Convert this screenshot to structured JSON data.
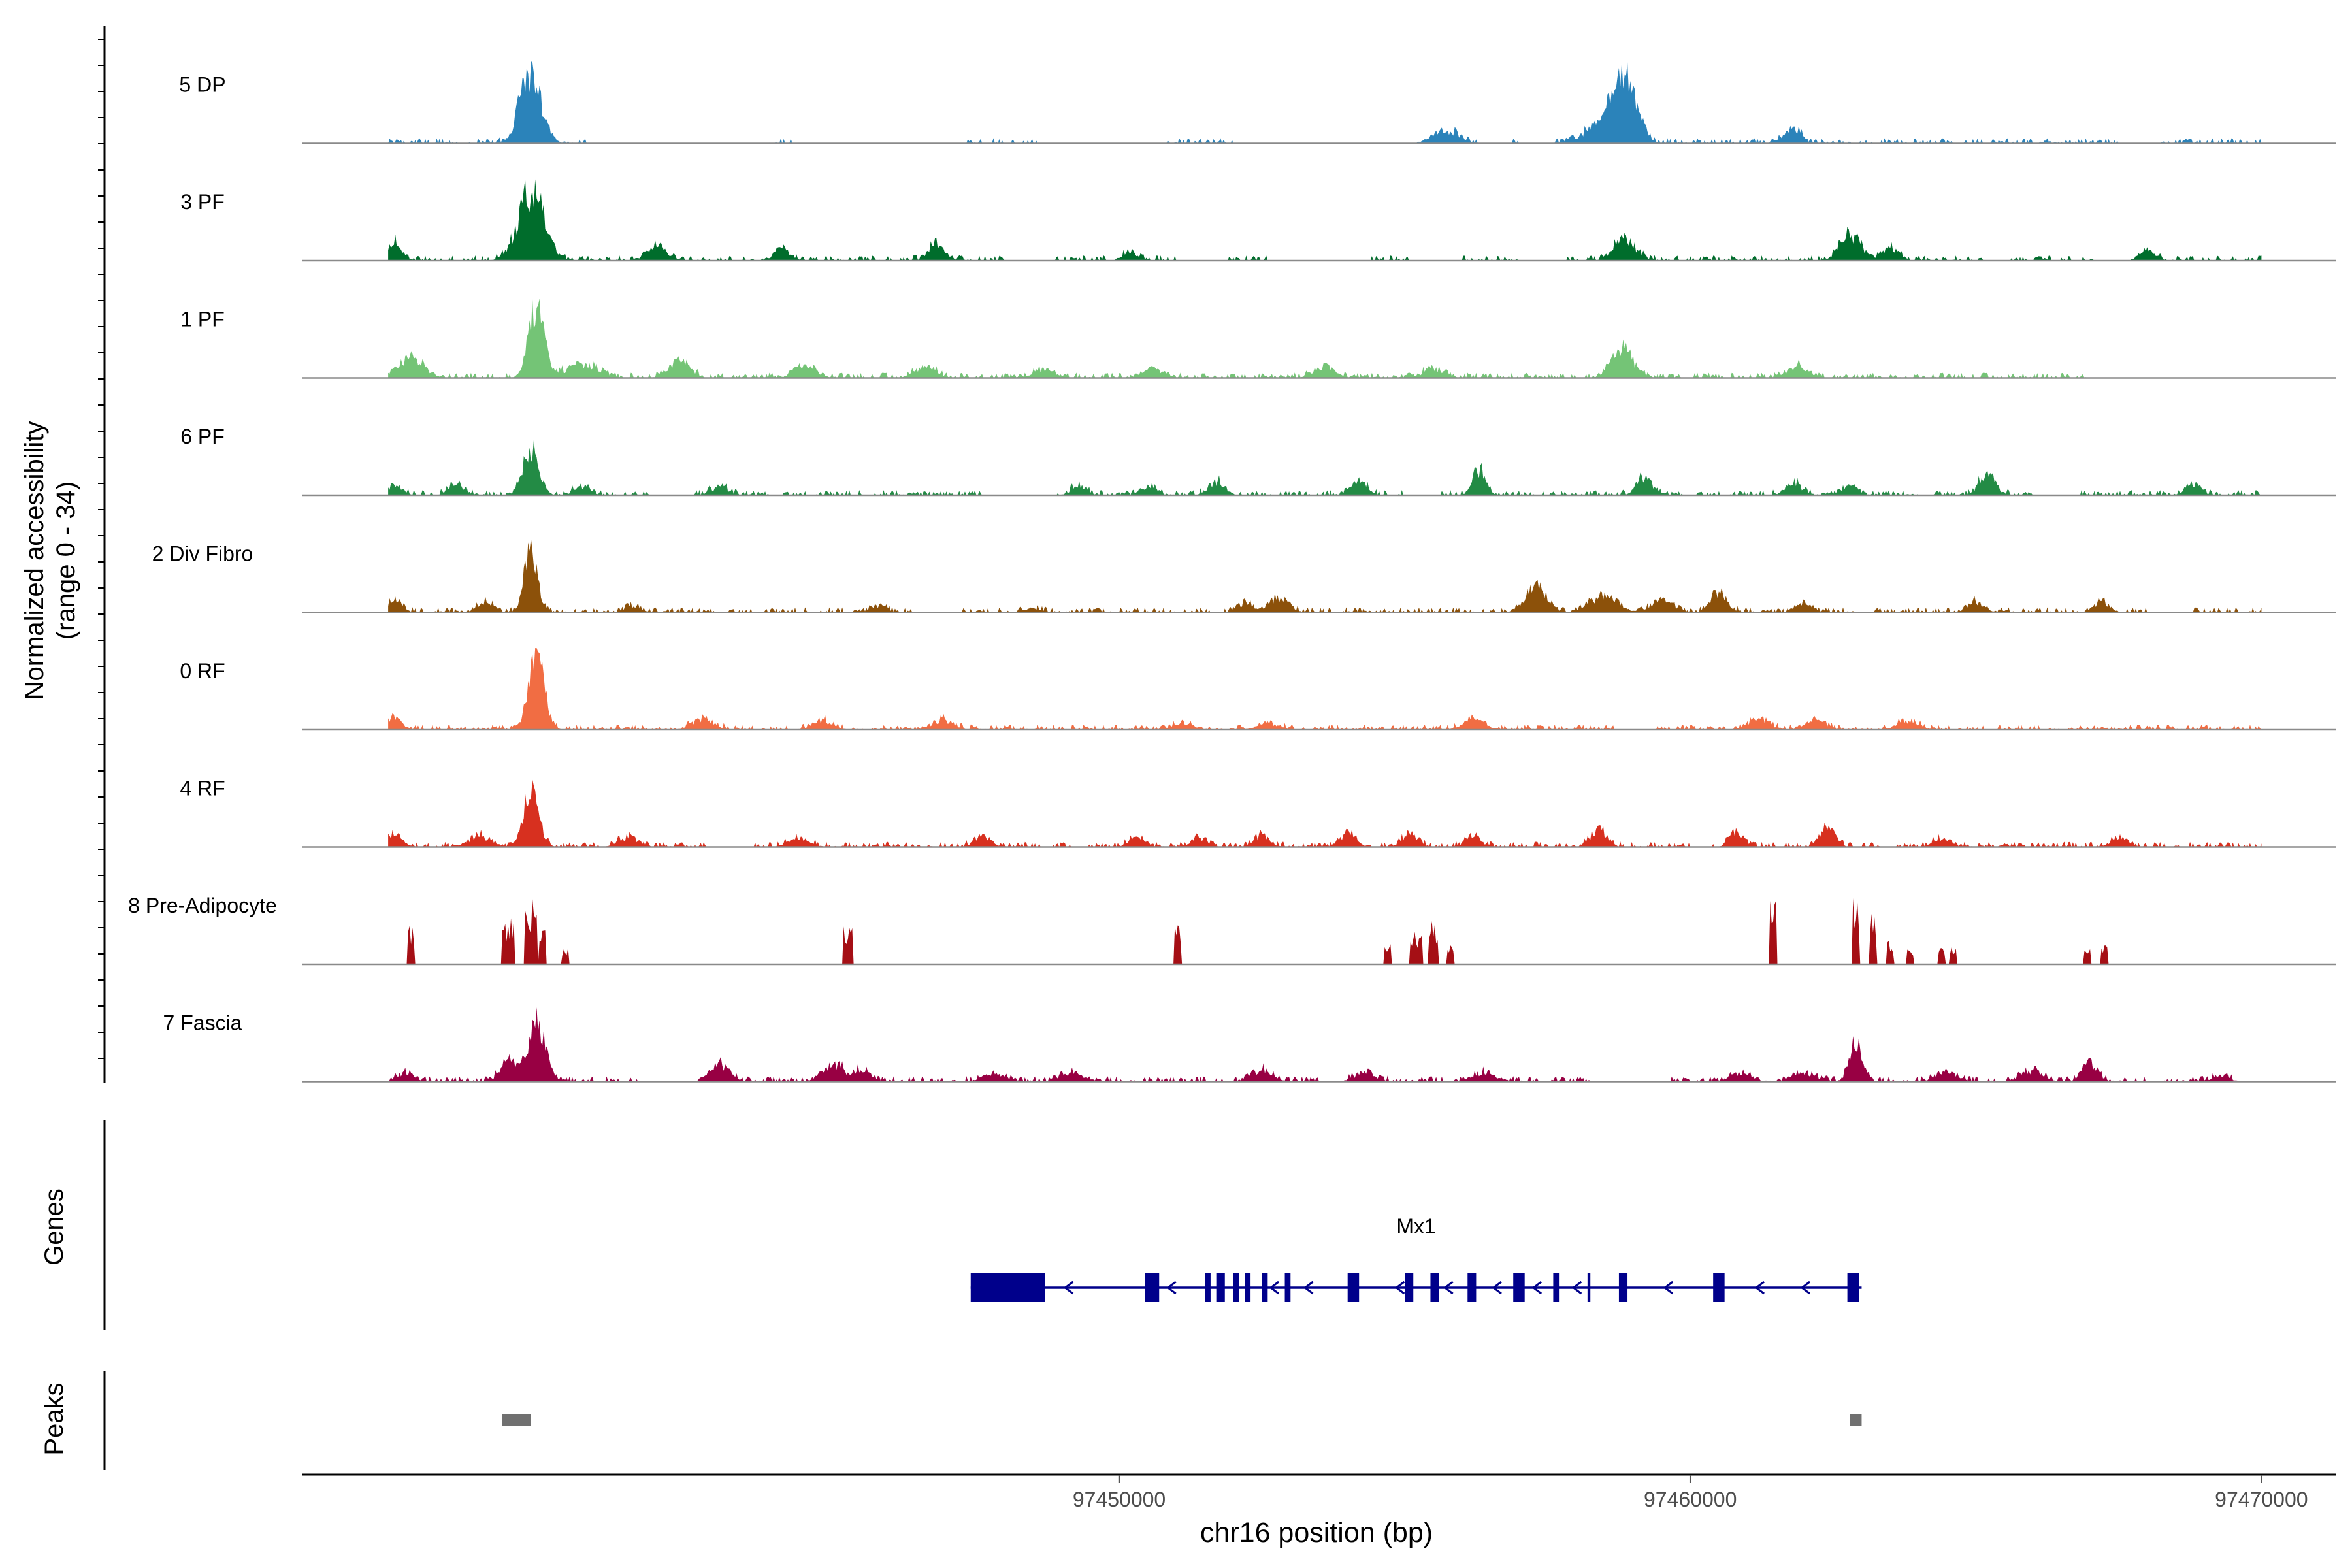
{
  "chart_data": {
    "type": "area",
    "title": "",
    "ylabel_line1": "Normalized accessibility",
    "ylabel_line2": "(range 0 - 34)",
    "ylim": [
      0,
      34
    ],
    "xlabel": "chr16 position (bp)",
    "xlim": [
      97435700,
      97471300
    ],
    "xticks": [
      97450000,
      97460000,
      97470000
    ],
    "xtick_labels": [
      "97450000",
      "97460000",
      "97470000"
    ],
    "signal_range": [
      97437200,
      97470000
    ],
    "tracks": [
      {
        "name": "5 DP",
        "color": "#2b83ba",
        "peaks": [
          [
            97439700,
            34,
            400
          ],
          [
            97458850,
            28,
            450
          ],
          [
            97458500,
            9,
            700
          ],
          [
            97455700,
            6,
            500
          ],
          [
            97461800,
            8,
            300
          ]
        ],
        "gaps": [
          [
            97440800,
            97443800
          ],
          [
            97444300,
            97447200
          ],
          [
            97448600,
            97450800
          ],
          [
            97452000,
            97455800
          ],
          [
            97456300,
            97456800
          ],
          [
            97457000,
            97457600
          ],
          [
            97467500,
            97468200
          ]
        ]
      },
      {
        "name": "3 PF",
        "color": "#006d2c",
        "peaks": [
          [
            97439700,
            32,
            500
          ],
          [
            97437300,
            8,
            300
          ],
          [
            97441900,
            6,
            400
          ],
          [
            97444100,
            6,
            300
          ],
          [
            97446800,
            8,
            300
          ],
          [
            97450200,
            4,
            300
          ],
          [
            97458850,
            10,
            400
          ],
          [
            97462800,
            12,
            400
          ],
          [
            97463500,
            6,
            300
          ],
          [
            97468000,
            5,
            300
          ]
        ],
        "gaps": [
          [
            97448000,
            97448800
          ],
          [
            97449800,
            97450000
          ],
          [
            97451000,
            97451900
          ],
          [
            97452600,
            97454400
          ],
          [
            97455200,
            97456000
          ],
          [
            97457000,
            97457800
          ],
          [
            97465200,
            97465600
          ],
          [
            97467200,
            97467900
          ]
        ]
      },
      {
        "name": "1 PF",
        "color": "#74c476",
        "peaks": [
          [
            97439800,
            34,
            300
          ],
          [
            97437600,
            9,
            500
          ],
          [
            97440600,
            6,
            600
          ],
          [
            97442300,
            7,
            400
          ],
          [
            97444500,
            6,
            400
          ],
          [
            97446600,
            5,
            400
          ],
          [
            97448700,
            4,
            400
          ],
          [
            97450600,
            4,
            400
          ],
          [
            97453600,
            5,
            400
          ],
          [
            97455500,
            4,
            400
          ],
          [
            97458800,
            14,
            400
          ],
          [
            97461900,
            5,
            400
          ]
        ],
        "gaps": [
          [
            97467000,
            97470000
          ]
        ]
      },
      {
        "name": "6 PF",
        "color": "#238b45",
        "peaks": [
          [
            97439700,
            22,
            300
          ],
          [
            97437300,
            4,
            300
          ],
          [
            97438400,
            5,
            300
          ],
          [
            97440600,
            4,
            300
          ],
          [
            97443000,
            4,
            300
          ],
          [
            97449300,
            4,
            300
          ],
          [
            97450500,
            4,
            300
          ],
          [
            97451700,
            6,
            300
          ],
          [
            97454200,
            6,
            300
          ],
          [
            97456300,
            12,
            250
          ],
          [
            97459200,
            8,
            300
          ],
          [
            97461800,
            6,
            300
          ],
          [
            97462800,
            4,
            300
          ],
          [
            97465200,
            10,
            300
          ],
          [
            97468800,
            5,
            300
          ]
        ],
        "gaps": [
          [
            97441800,
            97442500
          ],
          [
            97447600,
            97448900
          ],
          [
            97455000,
            97455600
          ],
          [
            97466000,
            97466800
          ]
        ]
      },
      {
        "name": "2 Div Fibro",
        "color": "#8c510a",
        "peaks": [
          [
            97439700,
            30,
            250
          ],
          [
            97437300,
            5,
            300
          ],
          [
            97438900,
            5,
            300
          ],
          [
            97441500,
            3,
            300
          ],
          [
            97445800,
            3,
            300
          ],
          [
            97448500,
            2,
            300
          ],
          [
            97452200,
            4,
            300
          ],
          [
            97452800,
            6,
            400
          ],
          [
            97457300,
            12,
            400
          ],
          [
            97458500,
            8,
            500
          ],
          [
            97459500,
            6,
            400
          ],
          [
            97460500,
            10,
            300
          ],
          [
            97462000,
            4,
            300
          ],
          [
            97465000,
            5,
            300
          ],
          [
            97467200,
            5,
            300
          ]
        ],
        "gaps": [
          [
            97446400,
            97447200
          ],
          [
            97468000,
            97468800
          ]
        ]
      },
      {
        "name": "0 RF",
        "color": "#f16d43",
        "peaks": [
          [
            97439800,
            34,
            300
          ],
          [
            97437300,
            5,
            300
          ],
          [
            97442700,
            5,
            400
          ],
          [
            97444800,
            4,
            400
          ],
          [
            97446900,
            4,
            400
          ],
          [
            97451100,
            3,
            400
          ],
          [
            97452600,
            3,
            400
          ],
          [
            97456200,
            5,
            400
          ],
          [
            97461200,
            5,
            400
          ],
          [
            97462200,
            4,
            400
          ],
          [
            97463800,
            4,
            400
          ]
        ],
        "gaps": [
          [
            97458700,
            97459400
          ]
        ]
      },
      {
        "name": "4 RF",
        "color": "#d7301f",
        "peaks": [
          [
            97439700,
            26,
            300
          ],
          [
            97437300,
            6,
            300
          ],
          [
            97438800,
            5,
            400
          ],
          [
            97441400,
            4,
            400
          ],
          [
            97444400,
            4,
            400
          ],
          [
            97447600,
            5,
            300
          ],
          [
            97450300,
            4,
            300
          ],
          [
            97451400,
            4,
            300
          ],
          [
            97452500,
            5,
            300
          ],
          [
            97454000,
            6,
            300
          ],
          [
            97456200,
            5,
            300
          ],
          [
            97458400,
            8,
            300
          ],
          [
            97460800,
            8,
            250
          ],
          [
            97462400,
            8,
            300
          ],
          [
            97464400,
            4,
            300
          ],
          [
            97467500,
            4,
            300
          ],
          [
            97455100,
            6,
            300
          ]
        ],
        "gaps": [
          [
            97442800,
            97443600
          ],
          [
            97460000,
            97460300
          ],
          [
            97462900,
            97463000
          ]
        ]
      },
      {
        "name": "8 Pre-Adipocyte",
        "color": "#a50f15",
        "peaks": [
          [
            97437600,
            16,
            60
          ],
          [
            97439300,
            20,
            120
          ],
          [
            97439700,
            28,
            100
          ],
          [
            97439900,
            16,
            60
          ],
          [
            97440300,
            8,
            50
          ],
          [
            97445250,
            18,
            80
          ],
          [
            97451020,
            17,
            60
          ],
          [
            97454700,
            9,
            70
          ],
          [
            97455200,
            14,
            120
          ],
          [
            97455500,
            18,
            80
          ],
          [
            97455800,
            8,
            60
          ],
          [
            97461450,
            28,
            70
          ],
          [
            97462900,
            28,
            70
          ],
          [
            97463200,
            24,
            60
          ],
          [
            97463500,
            10,
            60
          ],
          [
            97463850,
            8,
            60
          ],
          [
            97464400,
            8,
            50
          ],
          [
            97464600,
            8,
            50
          ],
          [
            97466950,
            8,
            50
          ],
          [
            97467250,
            8,
            50
          ]
        ],
        "gaps": []
      },
      {
        "name": "7 Fascia",
        "color": "#980043",
        "peaks": [
          [
            97439800,
            26,
            350
          ],
          [
            97439300,
            10,
            300
          ],
          [
            97437500,
            4,
            300
          ],
          [
            97443000,
            8,
            400
          ],
          [
            97445000,
            8,
            400
          ],
          [
            97445500,
            5,
            300
          ],
          [
            97447800,
            4,
            400
          ],
          [
            97449200,
            4,
            400
          ],
          [
            97452500,
            5,
            400
          ],
          [
            97454300,
            4,
            400
          ],
          [
            97456400,
            4,
            400
          ],
          [
            97460900,
            4,
            400
          ],
          [
            97462000,
            4,
            400
          ],
          [
            97462900,
            18,
            250
          ],
          [
            97464500,
            4,
            400
          ],
          [
            97466000,
            5,
            400
          ],
          [
            97467000,
            8,
            300
          ],
          [
            97469300,
            3,
            300
          ]
        ],
        "gaps": [
          [
            97440800,
            97441000
          ],
          [
            97441600,
            97443000
          ],
          [
            97447200,
            97447300
          ],
          [
            97453500,
            97454000
          ],
          [
            97458300,
            97459600
          ],
          [
            97469500,
            97470000
          ]
        ]
      }
    ],
    "genes_label": "Genes",
    "gene": {
      "name": "Mx1",
      "color": "#00008b",
      "strand": "-",
      "start": 97447400,
      "end": 97463000,
      "exons": [
        [
          97447400,
          97448700
        ],
        [
          97450450,
          97450700
        ],
        [
          97451500,
          97451600
        ],
        [
          97451700,
          97451850
        ],
        [
          97452000,
          97452100
        ],
        [
          97452200,
          97452300
        ],
        [
          97452500,
          97452600
        ],
        [
          97452900,
          97453000
        ],
        [
          97454000,
          97454200
        ],
        [
          97455000,
          97455150
        ],
        [
          97455450,
          97455600
        ],
        [
          97456100,
          97456250
        ],
        [
          97456900,
          97457100
        ],
        [
          97457600,
          97457700
        ],
        [
          97458200,
          97458250
        ],
        [
          97458750,
          97458900
        ],
        [
          97460400,
          97460600
        ],
        [
          97462750,
          97462950
        ]
      ],
      "arrows": [
        97449100,
        97450900,
        97452700,
        97453300,
        97454900,
        97455750,
        97456600,
        97457300,
        97458000,
        97459600,
        97461200,
        97462000
      ]
    },
    "peaks_label": "Peaks",
    "peaks_track": {
      "color": "#707070",
      "regions": [
        [
          97439200,
          97439700
        ],
        [
          97462800,
          97463000
        ]
      ]
    }
  }
}
